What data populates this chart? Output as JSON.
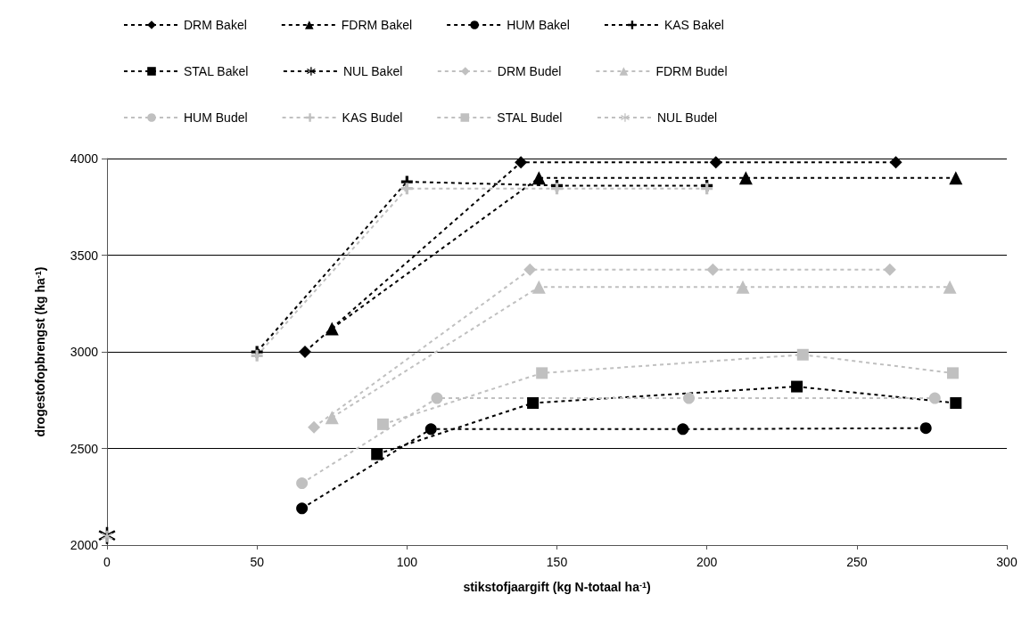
{
  "chart_data": {
    "type": "line",
    "xlabel": "stikstofjaargift (kg N-totaal ha$^{-1}$)",
    "ylabel": "drogestofopbrengst (kg ha$^{-1}$)",
    "xlim": [
      0,
      300
    ],
    "xticks": [
      0,
      50,
      100,
      150,
      200,
      250,
      300
    ],
    "ylim": [
      2000,
      4000
    ],
    "yticks": [
      2000,
      2500,
      3000,
      3500,
      4000
    ],
    "grid": "y",
    "legend": "top",
    "line_style": "dashed",
    "series": [
      {
        "name": "DRM Bakel",
        "color": "#000000",
        "marker": "diamond",
        "x": [
          66,
          138,
          203,
          263
        ],
        "values": [
          3000,
          3980,
          3980,
          3980
        ]
      },
      {
        "name": "FDRM Bakel",
        "color": "#000000",
        "marker": "triangle",
        "x": [
          75,
          144,
          213,
          283
        ],
        "values": [
          3120,
          3900,
          3900,
          3900
        ]
      },
      {
        "name": "HUM Bakel",
        "color": "#000000",
        "marker": "circle",
        "x": [
          65,
          108,
          192,
          273
        ],
        "values": [
          2190,
          2600,
          2600,
          2605
        ]
      },
      {
        "name": "KAS Bakel",
        "color": "#000000",
        "marker": "cross",
        "x": [
          50,
          100,
          150,
          200
        ],
        "values": [
          3000,
          3880,
          3860,
          3860
        ]
      },
      {
        "name": "STAL Bakel",
        "color": "#000000",
        "marker": "square",
        "x": [
          90,
          142,
          230,
          283
        ],
        "values": [
          2470,
          2735,
          2820,
          2735
        ]
      },
      {
        "name": "NUL Bakel",
        "color": "#000000",
        "marker": "star",
        "x": [
          0
        ],
        "values": [
          2050
        ]
      },
      {
        "name": "DRM Budel",
        "color": "#c0c0c0",
        "marker": "diamond",
        "x": [
          69,
          141,
          202,
          261
        ],
        "values": [
          2610,
          3425,
          3425,
          3425
        ]
      },
      {
        "name": "FDRM Budel",
        "color": "#c0c0c0",
        "marker": "triangle",
        "x": [
          75,
          144,
          212,
          281
        ],
        "values": [
          2660,
          3335,
          3335,
          3335
        ]
      },
      {
        "name": "HUM Budel",
        "color": "#c0c0c0",
        "marker": "circle",
        "x": [
          65,
          110,
          194,
          276
        ],
        "values": [
          2320,
          2760,
          2760,
          2760
        ]
      },
      {
        "name": "KAS Budel",
        "color": "#c0c0c0",
        "marker": "cross",
        "x": [
          50,
          100,
          150,
          200
        ],
        "values": [
          2980,
          3845,
          3845,
          3845
        ]
      },
      {
        "name": "STAL Budel",
        "color": "#c0c0c0",
        "marker": "square",
        "x": [
          92,
          145,
          232,
          282
        ],
        "values": [
          2625,
          2890,
          2985,
          2890
        ]
      },
      {
        "name": "NUL Budel",
        "color": "#c0c0c0",
        "marker": "star",
        "x": [
          0
        ],
        "values": [
          2045
        ]
      }
    ]
  }
}
